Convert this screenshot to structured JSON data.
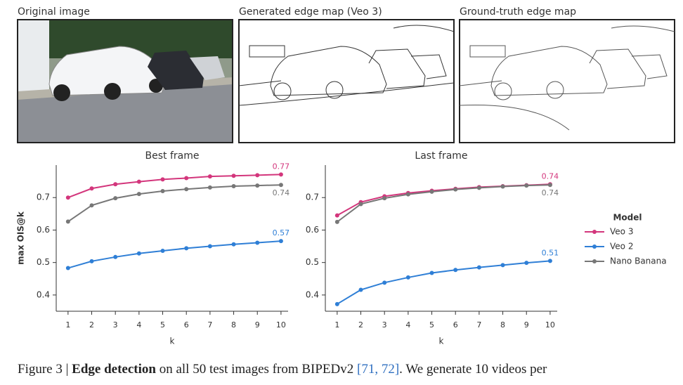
{
  "panels": [
    "Original image",
    "Generated edge map (Veo 3)",
    "Ground-truth edge map"
  ],
  "legend": {
    "title": "Model"
  },
  "caption": {
    "label": "Figure 3 |",
    "bold": "Edge detection",
    "text1": "on all 50 test images from BIPEDv2",
    "refs": "[71, 72]",
    "text2": ". We generate 10 videos per"
  },
  "chart_data": [
    {
      "type": "line",
      "title": "Best frame",
      "ylabel": "max OIS@k",
      "xlabel": "k",
      "x": [
        1,
        2,
        3,
        4,
        5,
        6,
        7,
        8,
        9,
        10
      ],
      "xlim": [
        0.5,
        10.3
      ],
      "xticks": [
        1,
        2,
        3,
        4,
        5,
        6,
        7,
        8,
        9,
        10
      ],
      "ylim": [
        0.35,
        0.8
      ],
      "yticks": [
        0.4,
        0.5,
        0.6,
        0.7
      ],
      "series": [
        {
          "name": "Veo 3",
          "color": "#d3367c",
          "label_position": "above",
          "values": [
            0.7,
            0.728,
            0.741,
            0.749,
            0.756,
            0.76,
            0.765,
            0.767,
            0.769,
            0.771
          ],
          "value_labels": [
            null,
            null,
            null,
            null,
            null,
            null,
            null,
            null,
            null,
            "0.77"
          ]
        },
        {
          "name": "Veo 2",
          "color": "#2f7fd6",
          "label_position": "above",
          "values": [
            0.483,
            0.504,
            0.517,
            0.528,
            0.536,
            0.544,
            0.55,
            0.556,
            0.561,
            0.566
          ],
          "value_labels": [
            null,
            null,
            null,
            null,
            null,
            null,
            null,
            null,
            null,
            "0.57"
          ]
        },
        {
          "name": "Nano Banana",
          "color": "#777777",
          "label_position": "below",
          "values": [
            0.626,
            0.676,
            0.698,
            0.711,
            0.72,
            0.726,
            0.731,
            0.735,
            0.737,
            0.739
          ],
          "value_labels": [
            null,
            null,
            null,
            null,
            null,
            null,
            null,
            null,
            null,
            "0.74"
          ]
        }
      ]
    },
    {
      "type": "line",
      "title": "Last frame",
      "xlabel": "k",
      "x": [
        1,
        2,
        3,
        4,
        5,
        6,
        7,
        8,
        9,
        10
      ],
      "xlim": [
        0.5,
        10.3
      ],
      "xticks": [
        1,
        2,
        3,
        4,
        5,
        6,
        7,
        8,
        9,
        10
      ],
      "ylim": [
        0.35,
        0.8
      ],
      "yticks": [
        0.4,
        0.5,
        0.6,
        0.7
      ],
      "series": [
        {
          "name": "Veo 3",
          "color": "#d3367c",
          "label_position": "above",
          "values": [
            0.645,
            0.686,
            0.704,
            0.714,
            0.721,
            0.727,
            0.732,
            0.735,
            0.738,
            0.741
          ],
          "value_labels": [
            null,
            null,
            null,
            null,
            null,
            null,
            null,
            null,
            null,
            "0.74"
          ]
        },
        {
          "name": "Veo 2",
          "color": "#2f7fd6",
          "label_position": "above",
          "values": [
            0.372,
            0.416,
            0.438,
            0.454,
            0.468,
            0.477,
            0.485,
            0.492,
            0.499,
            0.505
          ],
          "value_labels": [
            null,
            null,
            null,
            null,
            null,
            null,
            null,
            null,
            null,
            "0.51"
          ]
        },
        {
          "name": "Nano Banana",
          "color": "#777777",
          "label_position": "below",
          "values": [
            0.625,
            0.68,
            0.698,
            0.71,
            0.718,
            0.725,
            0.73,
            0.734,
            0.737,
            0.739
          ],
          "value_labels": [
            null,
            null,
            null,
            null,
            null,
            null,
            null,
            null,
            null,
            "0.74"
          ]
        }
      ]
    }
  ]
}
